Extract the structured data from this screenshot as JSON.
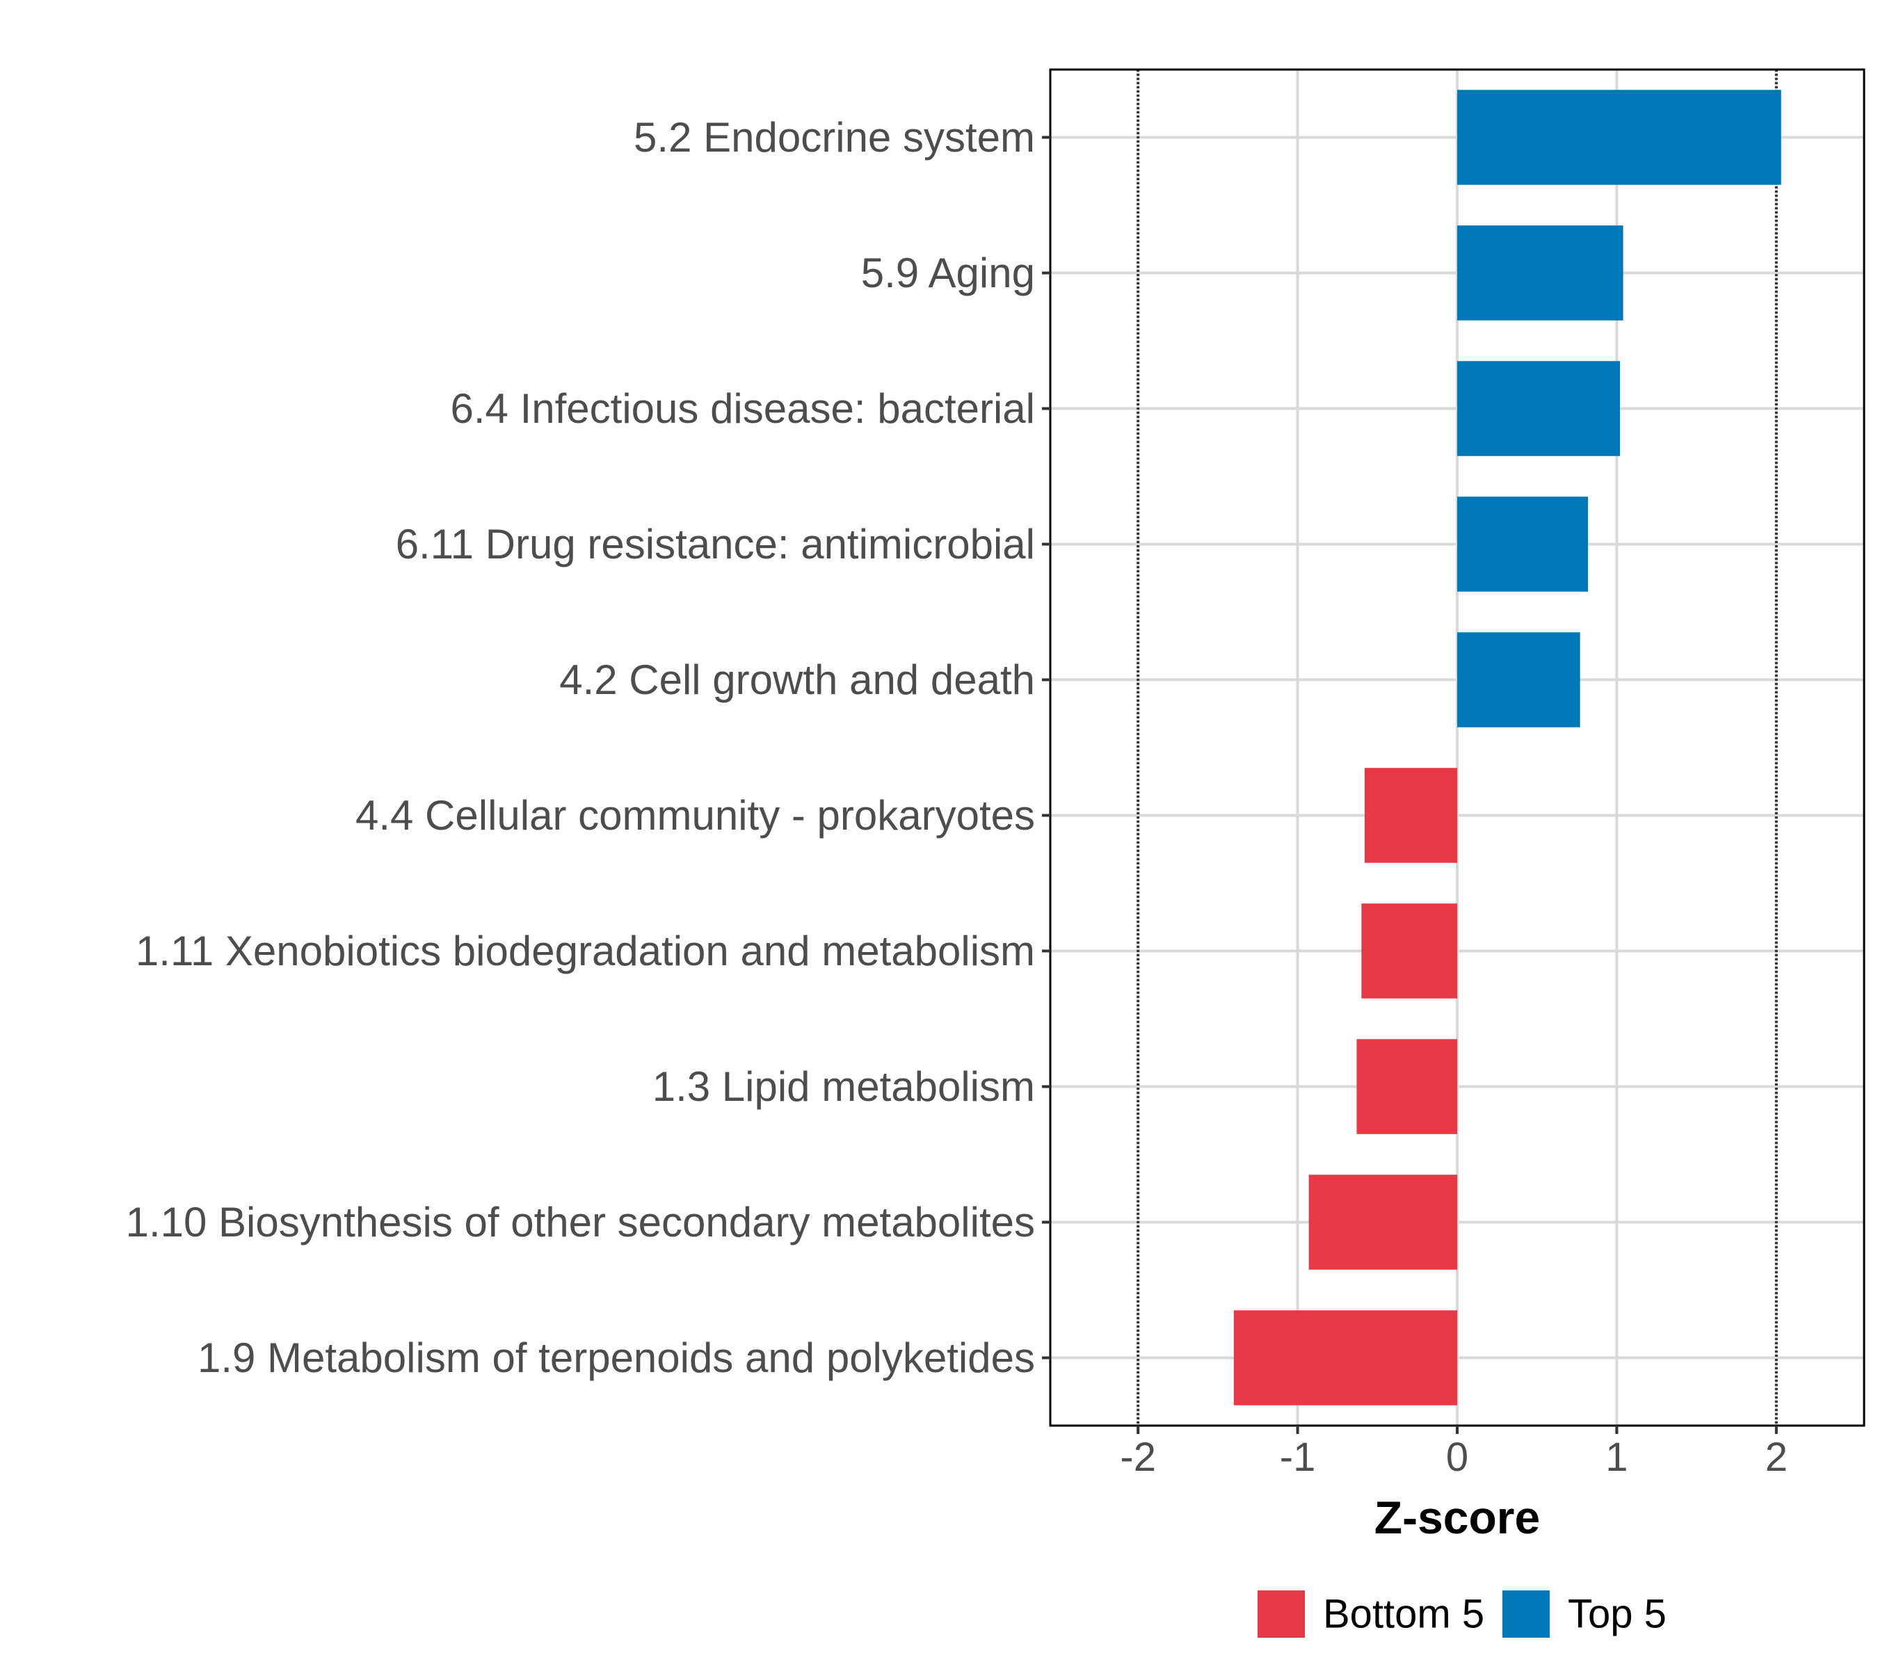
{
  "chart_data": {
    "type": "bar",
    "orientation": "horizontal",
    "title": "",
    "xlabel": "Z-score",
    "ylabel": "",
    "xlim": [
      -2.55,
      2.55
    ],
    "xticks": [
      -2,
      -1,
      0,
      1,
      2
    ],
    "xtick_labels": [
      "-2",
      "-1",
      "0",
      "1",
      "2"
    ],
    "reference_lines": [
      -2,
      2
    ],
    "grid": true,
    "categories": [
      "5.2 Endocrine system",
      "5.9 Aging",
      "6.4 Infectious disease: bacterial",
      "6.11 Drug resistance: antimicrobial",
      "4.2 Cell growth and death",
      "4.4 Cellular community - prokaryotes",
      "1.11 Xenobiotics biodegradation and metabolism",
      "1.3 Lipid metabolism",
      "1.10 Biosynthesis of other secondary metabolites",
      "1.9 Metabolism of terpenoids and polyketides"
    ],
    "values": [
      2.03,
      1.04,
      1.02,
      0.82,
      0.77,
      -0.58,
      -0.6,
      -0.63,
      -0.93,
      -1.4
    ],
    "groups": [
      "Top 5",
      "Top 5",
      "Top 5",
      "Top 5",
      "Top 5",
      "Bottom 5",
      "Bottom 5",
      "Bottom 5",
      "Bottom 5",
      "Bottom 5"
    ],
    "legend": {
      "position": "bottom",
      "entries": [
        {
          "name": "Bottom 5",
          "color": "#E63946"
        },
        {
          "name": "Top 5",
          "color": "#0077B6"
        }
      ]
    }
  }
}
